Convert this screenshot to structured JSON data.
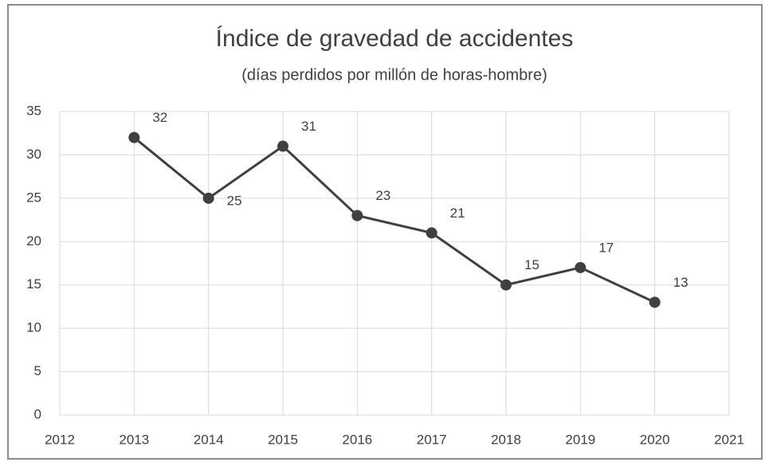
{
  "chart_data": {
    "type": "line",
    "title": "Índice de gravedad de accidentes",
    "subtitle": "(días perdidos por millón de horas-hombre)",
    "x": [
      2013,
      2014,
      2015,
      2016,
      2017,
      2018,
      2019,
      2020
    ],
    "series": [
      {
        "name": "Índice de gravedad",
        "color": "#404040",
        "values": [
          32,
          25,
          31,
          23,
          21,
          15,
          17,
          13
        ]
      }
    ],
    "xlim": [
      2012,
      2021
    ],
    "xticks": [
      2012,
      2013,
      2014,
      2015,
      2016,
      2017,
      2018,
      2019,
      2020,
      2021
    ],
    "ylim": [
      0,
      35
    ],
    "yticks": [
      0,
      5,
      10,
      15,
      20,
      25,
      30,
      35
    ],
    "grid": true
  }
}
